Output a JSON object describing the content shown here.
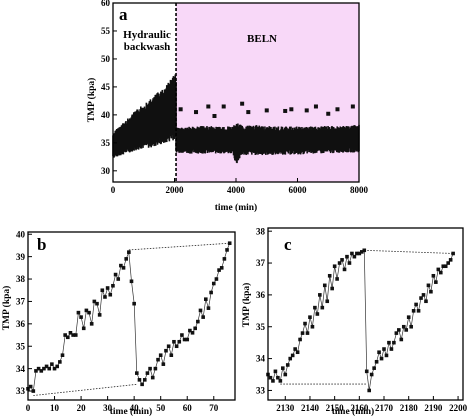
{
  "chart_data": [
    {
      "panel": "a",
      "type": "scatter",
      "xlabel": "time (min)",
      "ylabel": "TMP (kpa)",
      "xlim": [
        0,
        8000
      ],
      "ylim": [
        28,
        60
      ],
      "xticks": [
        0,
        2000,
        4000,
        6000,
        8000
      ],
      "yticks": [
        30,
        35,
        40,
        45,
        50,
        55,
        60
      ],
      "divider_x": 2050,
      "shaded_region": {
        "x": [
          2050,
          8000
        ],
        "color": "#f8d8f8"
      },
      "annotations": [
        {
          "text": "Hydraulic",
          "x": 1000,
          "y": 54.6
        },
        {
          "text": "backwash",
          "x": 1000,
          "y": 52.3
        },
        {
          "text": "BELN",
          "x": 4800,
          "y": 54
        }
      ],
      "series": [
        {
          "region": "Hydraulic backwash",
          "x": [
            0,
            150,
            300,
            450,
            600,
            750,
            900,
            1050,
            1200,
            1350,
            1500,
            1650,
            1800,
            1950,
            2050
          ],
          "y_min": [
            32,
            32.2,
            32.5,
            32.8,
            33,
            33.2,
            33.5,
            33.5,
            33.6,
            33.8,
            34,
            34.2,
            34.5,
            34.8,
            35
          ],
          "y_max": [
            37,
            38,
            38.8,
            39.5,
            40.5,
            41.2,
            42,
            42.6,
            43.2,
            44,
            44.8,
            45.5,
            46.5,
            47.5,
            48
          ]
        },
        {
          "region": "BELN",
          "x": [
            2050,
            2500,
            3000,
            3500,
            3900,
            4000,
            4200,
            4600,
            5000,
            5500,
            6000,
            6500,
            7000,
            7500,
            8000
          ],
          "y_min": [
            33,
            32.8,
            32.8,
            32.8,
            32.8,
            30.5,
            32.5,
            32.5,
            32.5,
            32.6,
            32.6,
            32.8,
            32.8,
            33,
            33
          ],
          "y_max": [
            38,
            38.2,
            38.3,
            38.2,
            38.2,
            39,
            38.5,
            38.5,
            38.3,
            38.2,
            38.2,
            38.2,
            38.3,
            38.3,
            38.5
          ],
          "outliers": [
            [
              2200,
              41
            ],
            [
              2700,
              40.5
            ],
            [
              3100,
              41.5
            ],
            [
              3600,
              41.5
            ],
            [
              4200,
              42
            ],
            [
              4400,
              40.5
            ],
            [
              5000,
              40.8
            ],
            [
              5600,
              40.7
            ],
            [
              5800,
              41
            ],
            [
              6300,
              40.8
            ],
            [
              6600,
              41.5
            ],
            [
              7300,
              41
            ],
            [
              7800,
              41.5
            ],
            [
              3300,
              39.8
            ],
            [
              7000,
              40.2
            ]
          ]
        }
      ]
    },
    {
      "panel": "b",
      "type": "line",
      "xlabel": "time (min)",
      "ylabel": "TMP (kpa)",
      "xlim": [
        0,
        78
      ],
      "ylim": [
        32.6,
        40.1
      ],
      "xticks": [
        0,
        10,
        20,
        30,
        40,
        50,
        60,
        70
      ],
      "yticks": [
        33,
        34,
        35,
        36,
        37,
        38,
        39,
        40
      ],
      "x": [
        0,
        1,
        2,
        3,
        4,
        5,
        6,
        7,
        8,
        9,
        10,
        11,
        12,
        13,
        14,
        15,
        16,
        17,
        18,
        19,
        20,
        21,
        22,
        23,
        24,
        25,
        26,
        27,
        28,
        29,
        30,
        31,
        32,
        33,
        34,
        35,
        36,
        37,
        38,
        39,
        40,
        41,
        42,
        43,
        44,
        45,
        46,
        47,
        48,
        49,
        50,
        51,
        52,
        53,
        54,
        55,
        56,
        57,
        58,
        59,
        60,
        61,
        62,
        63,
        64,
        65,
        66,
        67,
        68,
        69,
        70,
        71,
        72,
        73,
        74,
        75,
        76
      ],
      "y": [
        33.1,
        33.2,
        33.0,
        33.9,
        34.0,
        33.9,
        34.0,
        34.1,
        34.0,
        34.2,
        34.0,
        34.1,
        34.3,
        34.6,
        35.5,
        35.4,
        35.6,
        35.5,
        35.5,
        36.5,
        36.3,
        35.8,
        36.6,
        36.5,
        36.0,
        37.0,
        36.9,
        36.4,
        37.5,
        37.2,
        37.6,
        37.3,
        37.7,
        38.2,
        38.0,
        38.6,
        38.5,
        38.9,
        39.2,
        37.9,
        36.9,
        33.8,
        33.5,
        33.3,
        33.5,
        33.8,
        34.0,
        33.6,
        34.0,
        34.4,
        34.6,
        34.2,
        34.8,
        35.0,
        34.6,
        35.2,
        35.0,
        35.2,
        35.5,
        35.3,
        35.3,
        35.7,
        35.6,
        35.8,
        36.1,
        36.6,
        36.3,
        37.1,
        36.7,
        37.4,
        37.8,
        38.0,
        38.4,
        38.5,
        38.9,
        39.3,
        39.6
      ],
      "envelope": {
        "bottom": [
          [
            2,
            32.8
          ],
          [
            41,
            33.3
          ]
        ],
        "top": [
          [
            38,
            39.3
          ],
          [
            76,
            39.6
          ]
        ]
      }
    },
    {
      "panel": "c",
      "type": "line",
      "xlabel": "time (min)",
      "ylabel": "TMP (kpa)",
      "xlim": [
        2123,
        2202
      ],
      "ylim": [
        32.7,
        38.1
      ],
      "xticks": [
        2130,
        2140,
        2150,
        2160,
        2170,
        2180,
        2190,
        2200
      ],
      "yticks": [
        33,
        34,
        35,
        36,
        37,
        38
      ],
      "x": [
        2123,
        2124,
        2125,
        2126,
        2127,
        2128,
        2129,
        2130,
        2131,
        2132,
        2133,
        2134,
        2135,
        2136,
        2137,
        2138,
        2139,
        2140,
        2141,
        2142,
        2143,
        2144,
        2145,
        2146,
        2147,
        2148,
        2149,
        2150,
        2151,
        2152,
        2153,
        2154,
        2155,
        2156,
        2157,
        2158,
        2159,
        2160,
        2161,
        2162,
        2163,
        2164,
        2165,
        2166,
        2167,
        2168,
        2169,
        2170,
        2171,
        2172,
        2173,
        2174,
        2175,
        2176,
        2177,
        2178,
        2179,
        2180,
        2181,
        2182,
        2183,
        2184,
        2185,
        2186,
        2187,
        2188,
        2189,
        2190,
        2191,
        2192,
        2193,
        2194,
        2195,
        2196,
        2197,
        2198
      ],
      "y": [
        33.5,
        33.4,
        33.3,
        33.6,
        33.4,
        33.3,
        33.7,
        33.5,
        33.8,
        34.0,
        34.1,
        34.3,
        34.2,
        34.6,
        34.8,
        35.1,
        34.8,
        35.3,
        35.0,
        35.6,
        35.4,
        36.0,
        35.6,
        36.3,
        35.8,
        36.6,
        36.2,
        36.9,
        36.5,
        37.0,
        37.1,
        36.8,
        37.2,
        37.0,
        37.3,
        37.2,
        37.3,
        37.3,
        37.35,
        37.4,
        33.6,
        33.0,
        33.5,
        33.7,
        33.9,
        34.2,
        34.0,
        34.3,
        34.1,
        34.5,
        34.3,
        34.5,
        34.8,
        34.9,
        34.6,
        35.0,
        34.9,
        35.3,
        35.0,
        35.5,
        35.7,
        35.5,
        35.9,
        36.0,
        35.8,
        36.3,
        36.1,
        36.6,
        36.4,
        36.8,
        36.7,
        36.9,
        36.9,
        37.0,
        37.1,
        37.3
      ],
      "envelope": {
        "bottom": [
          [
            2128,
            33.2
          ],
          [
            2163,
            33.2
          ]
        ],
        "top": [
          [
            2162,
            37.4
          ],
          [
            2198,
            37.3
          ]
        ]
      }
    }
  ],
  "panels": {
    "a": {
      "label": "a",
      "xlabel": "time (min)",
      "ylabel": "TMP (kpa)",
      "note1": "Hydraulic",
      "note2": "backwash",
      "note3": "BELN"
    },
    "b": {
      "label": "b",
      "xlabel": "time (min)",
      "ylabel": "TMP (kpa)"
    },
    "c": {
      "label": "c",
      "xlabel": "time (min)",
      "ylabel": "TMP (kpa)"
    }
  },
  "colors": {
    "marker": "#111111",
    "shade": "#f8d8f8",
    "frame": "#000000"
  }
}
